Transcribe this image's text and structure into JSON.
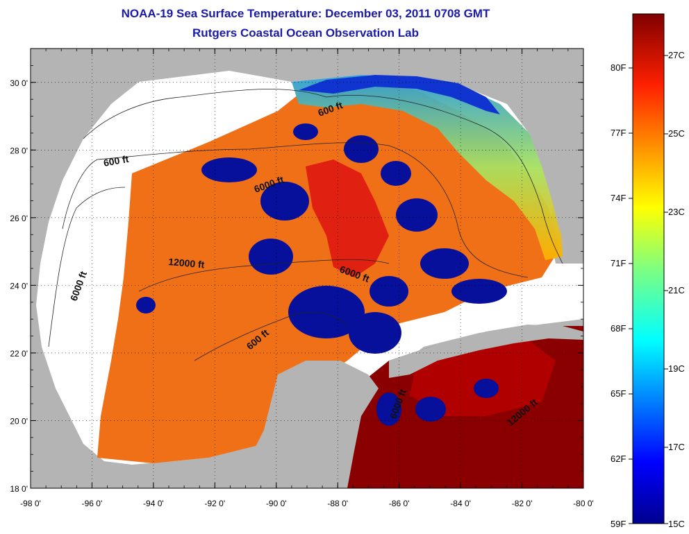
{
  "title": "NOAA-19 Sea Surface Temperature:  December 03, 2011 0708 GMT",
  "subtitle": "Rutgers Coastal Ocean Observation Lab",
  "map": {
    "lon_range": [
      -98,
      -80
    ],
    "lat_range": [
      18,
      31
    ],
    "lon_ticks": [
      "-98 0'",
      "-96 0'",
      "-94 0'",
      "-92 0'",
      "-90 0'",
      "-88 0'",
      "-86 0'",
      "-84 0'",
      "-82 0'",
      "-80 0'"
    ],
    "lat_ticks": [
      "18 0'",
      "20 0'",
      "22 0'",
      "24 0'",
      "26 0'",
      "28 0'",
      "30 0'"
    ],
    "grid": "dotted",
    "contour_labels": [
      "600 ft",
      "600 ft",
      "6000 ft",
      "6000 ft",
      "12000 ft",
      "6000 ft",
      "600 ft",
      "6000 ft",
      "12000 ft"
    ],
    "colors": {
      "land": "#b4b4b4",
      "no_data": "#ffffff",
      "cloud_mask": "#06109a"
    }
  },
  "colorbar": {
    "fahrenheit_labels": [
      "80F",
      "77F",
      "74F",
      "71F",
      "68F",
      "65F",
      "62F",
      "59F"
    ],
    "celsius_labels": [
      "27C",
      "25C",
      "23C",
      "21C",
      "19C",
      "17C",
      "15C"
    ],
    "colormap": "jet",
    "range_c": [
      15,
      28
    ]
  }
}
